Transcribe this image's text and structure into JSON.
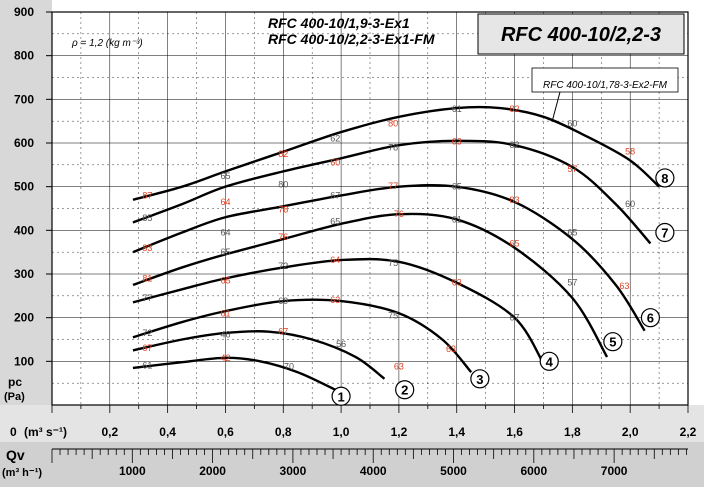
{
  "chart_data": {
    "type": "line",
    "title": "RFC 400-10/2,2-3",
    "subtitle_lines": [
      "RFC 400-10/1,9-3-Ex1",
      "RFC 400-10/2,2-3-Ex1-FM"
    ],
    "callout": "RFC 400-10/1,78-3-Ex2-FM",
    "density_note": "ρ = 1,2 (kg m⁻³)",
    "ylabel_main": "pc",
    "ylabel_unit": "(Pa)",
    "xlabel_prefix": "0",
    "xlabel": "(m³ s⁻¹)",
    "q_label": "Qv",
    "q_unit": "(m³ h⁻¹)",
    "ylim": [
      0,
      900
    ],
    "xlim": [
      0,
      2.2
    ],
    "y_ticks": [
      "900",
      "800",
      "700",
      "600",
      "500",
      "400",
      "300",
      "200",
      "100"
    ],
    "x_ticks": [
      "0,2",
      "0,4",
      "0,6",
      "0,8",
      "1,0",
      "1,2",
      "1,4",
      "1,6",
      "1,8",
      "2,0",
      "2,2"
    ],
    "q_ticks": [
      "1000",
      "2000",
      "3000",
      "4000",
      "5000",
      "6000",
      "7000"
    ],
    "grid": true,
    "colors": {
      "curve": "#000000",
      "efficiency_label": "#e04020",
      "fan_label": "#555555"
    },
    "series": [
      {
        "name": "1",
        "x": [
          0.28,
          0.45,
          0.6,
          0.72,
          0.85,
          0.98
        ],
        "y": [
          85,
          98,
          108,
          100,
          75,
          35
        ]
      },
      {
        "name": "2",
        "x": [
          0.28,
          0.45,
          0.6,
          0.75,
          0.9,
          1.05,
          1.15
        ],
        "y": [
          125,
          150,
          165,
          168,
          150,
          110,
          60
        ]
      },
      {
        "name": "3",
        "x": [
          0.28,
          0.45,
          0.6,
          0.8,
          1.0,
          1.2,
          1.35,
          1.45
        ],
        "y": [
          155,
          190,
          215,
          238,
          238,
          210,
          150,
          75
        ]
      },
      {
        "name": "4",
        "x": [
          0.28,
          0.45,
          0.6,
          0.8,
          1.0,
          1.2,
          1.4,
          1.6,
          1.7
        ],
        "y": [
          235,
          265,
          290,
          315,
          332,
          328,
          280,
          200,
          95
        ]
      },
      {
        "name": "5",
        "x": [
          0.28,
          0.45,
          0.6,
          0.8,
          1.0,
          1.2,
          1.4,
          1.6,
          1.8,
          1.92
        ],
        "y": [
          275,
          315,
          345,
          380,
          415,
          437,
          425,
          360,
          245,
          110
        ]
      },
      {
        "name": "6",
        "x": [
          0.28,
          0.45,
          0.6,
          0.8,
          1.0,
          1.2,
          1.4,
          1.6,
          1.8,
          1.95,
          2.05
        ],
        "y": [
          350,
          395,
          430,
          455,
          480,
          500,
          500,
          465,
          380,
          275,
          170
        ]
      },
      {
        "name": "7",
        "x": [
          0.28,
          0.45,
          0.6,
          0.8,
          1.0,
          1.2,
          1.4,
          1.6,
          1.8,
          1.95,
          2.07
        ],
        "y": [
          418,
          460,
          500,
          535,
          565,
          595,
          605,
          595,
          545,
          460,
          370
        ]
      },
      {
        "name": "8",
        "x": [
          0.28,
          0.45,
          0.6,
          0.8,
          1.0,
          1.2,
          1.4,
          1.55,
          1.7,
          1.85,
          2.0,
          2.1
        ],
        "y": [
          470,
          500,
          535,
          580,
          625,
          660,
          680,
          680,
          660,
          615,
          560,
          500
        ]
      }
    ],
    "efficiency_labels": [
      {
        "x": 0.33,
        "y": 90,
        "t": "61"
      },
      {
        "x": 0.6,
        "y": 108,
        "t": "42"
      },
      {
        "x": 0.82,
        "y": 88,
        "t": "70"
      },
      {
        "x": 0.33,
        "y": 130,
        "t": "67"
      },
      {
        "x": 0.6,
        "y": 162,
        "t": "46"
      },
      {
        "x": 0.8,
        "y": 168,
        "t": "67"
      },
      {
        "x": 1.0,
        "y": 140,
        "t": "56"
      },
      {
        "x": 1.2,
        "y": 88,
        "t": "63"
      },
      {
        "x": 0.33,
        "y": 165,
        "t": "72"
      },
      {
        "x": 0.6,
        "y": 210,
        "t": "61"
      },
      {
        "x": 0.8,
        "y": 238,
        "t": "69"
      },
      {
        "x": 0.98,
        "y": 240,
        "t": "63"
      },
      {
        "x": 1.18,
        "y": 205,
        "t": "75"
      },
      {
        "x": 1.38,
        "y": 128,
        "t": "63"
      },
      {
        "x": 0.33,
        "y": 245,
        "t": "77"
      },
      {
        "x": 0.6,
        "y": 285,
        "t": "65"
      },
      {
        "x": 0.8,
        "y": 318,
        "t": "72"
      },
      {
        "x": 0.98,
        "y": 332,
        "t": "64"
      },
      {
        "x": 1.18,
        "y": 325,
        "t": "75"
      },
      {
        "x": 1.4,
        "y": 280,
        "t": "63"
      },
      {
        "x": 1.6,
        "y": 200,
        "t": "67"
      },
      {
        "x": 0.33,
        "y": 290,
        "t": "81"
      },
      {
        "x": 0.6,
        "y": 350,
        "t": "65"
      },
      {
        "x": 0.8,
        "y": 385,
        "t": "76"
      },
      {
        "x": 0.98,
        "y": 420,
        "t": "65"
      },
      {
        "x": 1.2,
        "y": 437,
        "t": "76"
      },
      {
        "x": 1.4,
        "y": 425,
        "t": "61"
      },
      {
        "x": 1.6,
        "y": 370,
        "t": "65"
      },
      {
        "x": 1.8,
        "y": 280,
        "t": "57"
      },
      {
        "x": 0.33,
        "y": 360,
        "t": "83"
      },
      {
        "x": 0.6,
        "y": 395,
        "t": "64"
      },
      {
        "x": 0.8,
        "y": 448,
        "t": "78"
      },
      {
        "x": 0.98,
        "y": 480,
        "t": "67"
      },
      {
        "x": 1.18,
        "y": 502,
        "t": "77"
      },
      {
        "x": 1.4,
        "y": 500,
        "t": "65"
      },
      {
        "x": 1.6,
        "y": 470,
        "t": "83"
      },
      {
        "x": 1.8,
        "y": 395,
        "t": "65"
      },
      {
        "x": 1.98,
        "y": 272,
        "t": "63"
      },
      {
        "x": 0.33,
        "y": 428,
        "t": "85"
      },
      {
        "x": 0.6,
        "y": 465,
        "t": "64"
      },
      {
        "x": 0.8,
        "y": 505,
        "t": "80"
      },
      {
        "x": 0.98,
        "y": 555,
        "t": "60"
      },
      {
        "x": 1.18,
        "y": 590,
        "t": "78"
      },
      {
        "x": 1.4,
        "y": 603,
        "t": "63"
      },
      {
        "x": 1.6,
        "y": 595,
        "t": "82"
      },
      {
        "x": 1.8,
        "y": 540,
        "t": "57"
      },
      {
        "x": 2.0,
        "y": 460,
        "t": "60"
      },
      {
        "x": 0.33,
        "y": 480,
        "t": "87"
      },
      {
        "x": 0.6,
        "y": 525,
        "t": "65"
      },
      {
        "x": 0.8,
        "y": 575,
        "t": "82"
      },
      {
        "x": 0.98,
        "y": 610,
        "t": "62"
      },
      {
        "x": 1.18,
        "y": 645,
        "t": "80"
      },
      {
        "x": 1.4,
        "y": 678,
        "t": "61"
      },
      {
        "x": 1.6,
        "y": 678,
        "t": "82"
      },
      {
        "x": 1.8,
        "y": 645,
        "t": "60"
      },
      {
        "x": 2.0,
        "y": 580,
        "t": "58"
      }
    ],
    "fan_markers": [
      {
        "name": "1",
        "x": 1.0,
        "y": 20
      },
      {
        "name": "2",
        "x": 1.22,
        "y": 35
      },
      {
        "name": "3",
        "x": 1.48,
        "y": 60
      },
      {
        "name": "4",
        "x": 1.72,
        "y": 100
      },
      {
        "name": "5",
        "x": 1.94,
        "y": 145
      },
      {
        "name": "6",
        "x": 2.07,
        "y": 200
      },
      {
        "name": "7",
        "x": 2.12,
        "y": 395
      },
      {
        "name": "8",
        "x": 2.12,
        "y": 520
      }
    ]
  }
}
